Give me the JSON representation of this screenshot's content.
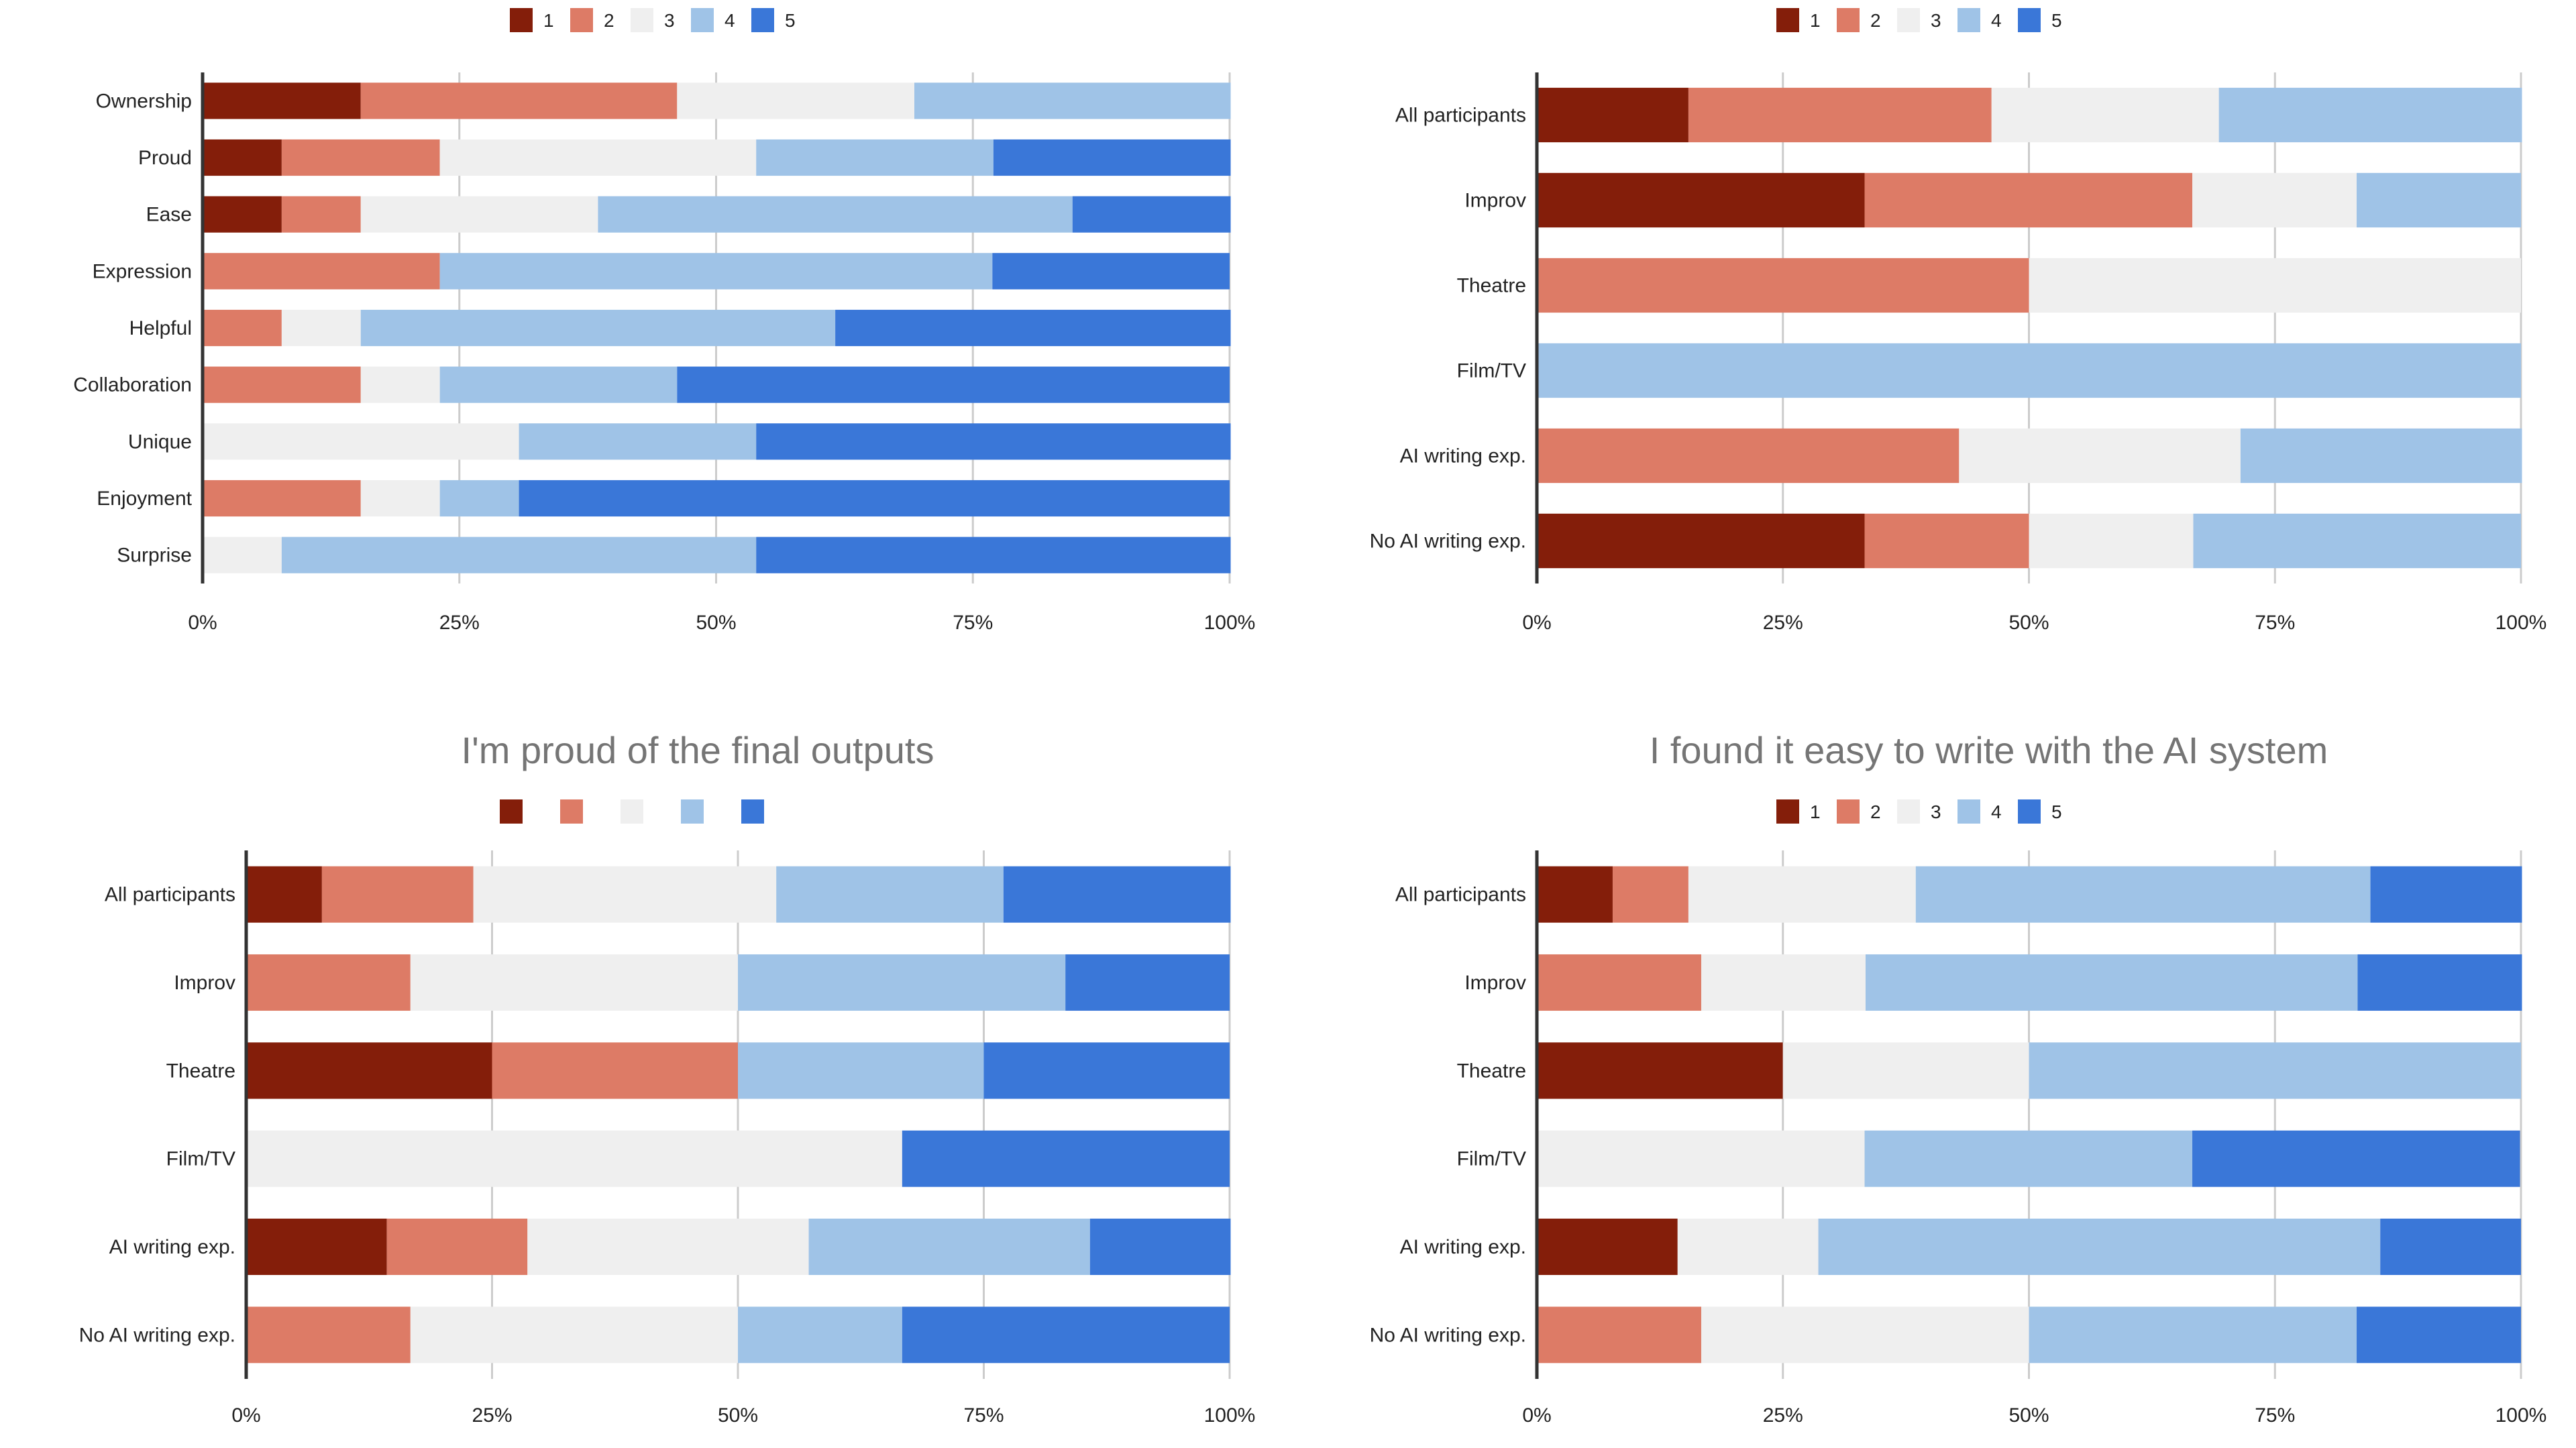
{
  "legend_colors": {
    "1": "#841e0a",
    "2": "#dd7b66",
    "3": "#efefef",
    "4": "#9fc3e7",
    "5": "#3a77d8"
  },
  "chart_data": [
    {
      "type": "bar",
      "orientation": "horizontal",
      "stacked": "percent",
      "legend": [
        "1",
        "2",
        "3",
        "4",
        "5"
      ],
      "legend_placement": "top",
      "categories": [
        "Ownership",
        "Proud",
        "Ease",
        "Expression",
        "Helpful",
        "Collaboration",
        "Unique",
        "Enjoyment",
        "Surprise"
      ],
      "series": [
        {
          "name": "1",
          "values": [
            15.4,
            7.7,
            7.7,
            0,
            0,
            0,
            0,
            0,
            0
          ]
        },
        {
          "name": "2",
          "values": [
            30.8,
            15.4,
            7.7,
            23.1,
            7.7,
            15.4,
            0,
            15.4,
            0
          ]
        },
        {
          "name": "3",
          "values": [
            23.1,
            30.8,
            23.1,
            0,
            7.7,
            7.7,
            30.8,
            7.7,
            7.7
          ]
        },
        {
          "name": "4",
          "values": [
            30.8,
            23.1,
            46.2,
            53.8,
            46.2,
            23.1,
            23.1,
            7.7,
            46.2
          ]
        },
        {
          "name": "5",
          "values": [
            0,
            23.1,
            15.4,
            23.1,
            38.5,
            53.8,
            46.2,
            69.2,
            46.2
          ]
        }
      ],
      "xlim": [
        0,
        100
      ],
      "xticks": [
        "0%",
        "25%",
        "50%",
        "75%",
        "100%"
      ],
      "grid": true
    },
    {
      "type": "bar",
      "orientation": "horizontal",
      "stacked": "percent",
      "legend": [
        "1",
        "2",
        "3",
        "4",
        "5"
      ],
      "legend_placement": "top",
      "categories": [
        "All participants",
        "Improv",
        "Theatre",
        "Film/TV",
        "AI writing exp.",
        "No AI writing exp."
      ],
      "series": [
        {
          "name": "1",
          "values": [
            15.4,
            33.3,
            0,
            0,
            0,
            33.3
          ]
        },
        {
          "name": "2",
          "values": [
            30.8,
            33.3,
            50,
            0,
            42.9,
            16.7
          ]
        },
        {
          "name": "3",
          "values": [
            23.1,
            16.7,
            50,
            0,
            28.6,
            16.7
          ]
        },
        {
          "name": "4",
          "values": [
            30.8,
            16.7,
            0,
            100,
            28.6,
            33.3
          ]
        },
        {
          "name": "5",
          "values": [
            0,
            0,
            0,
            0,
            0,
            0
          ]
        }
      ],
      "xlim": [
        0,
        100
      ],
      "xticks": [
        "0%",
        "25%",
        "50%",
        "75%",
        "100%"
      ],
      "grid": true
    },
    {
      "type": "bar",
      "orientation": "horizontal",
      "stacked": "percent",
      "title": "I'm proud of the final outputs",
      "legend": [
        "",
        "",
        "",
        "",
        ""
      ],
      "legend_placement": "top",
      "categories": [
        "All participants",
        "Improv",
        "Theatre",
        "Film/TV",
        "AI writing exp.",
        "No AI writing exp."
      ],
      "series": [
        {
          "values": [
            7.7,
            0,
            25,
            0,
            14.3,
            0
          ]
        },
        {
          "values": [
            15.4,
            16.7,
            25,
            0,
            14.3,
            16.7
          ]
        },
        {
          "values": [
            30.8,
            33.3,
            0,
            66.7,
            28.6,
            33.3
          ]
        },
        {
          "values": [
            23.1,
            33.3,
            25,
            0,
            28.6,
            16.7
          ]
        },
        {
          "values": [
            23.1,
            16.7,
            25,
            33.3,
            14.3,
            33.3
          ]
        }
      ],
      "xlim": [
        0,
        100
      ],
      "xticks": [
        "0%",
        "25%",
        "50%",
        "75%",
        "100%"
      ],
      "grid": true
    },
    {
      "type": "bar",
      "orientation": "horizontal",
      "stacked": "percent",
      "title": "I found it easy to write with the AI system",
      "legend": [
        "1",
        "2",
        "3",
        "4",
        "5"
      ],
      "legend_placement": "top",
      "categories": [
        "All participants",
        "Improv",
        "Theatre",
        "Film/TV",
        "AI writing exp.",
        "No AI writing exp."
      ],
      "series": [
        {
          "name": "1",
          "values": [
            7.7,
            0,
            25,
            0,
            14.3,
            0
          ]
        },
        {
          "name": "2",
          "values": [
            7.7,
            16.7,
            0,
            0,
            0,
            16.7
          ]
        },
        {
          "name": "3",
          "values": [
            23.1,
            16.7,
            25,
            33.3,
            14.3,
            33.3
          ]
        },
        {
          "name": "4",
          "values": [
            46.2,
            50,
            50,
            33.3,
            57.1,
            33.3
          ]
        },
        {
          "name": "5",
          "values": [
            15.4,
            16.7,
            0,
            33.3,
            14.3,
            16.7
          ]
        }
      ],
      "xlim": [
        0,
        100
      ],
      "xticks": [
        "0%",
        "25%",
        "50%",
        "75%",
        "100%"
      ],
      "grid": true
    }
  ]
}
